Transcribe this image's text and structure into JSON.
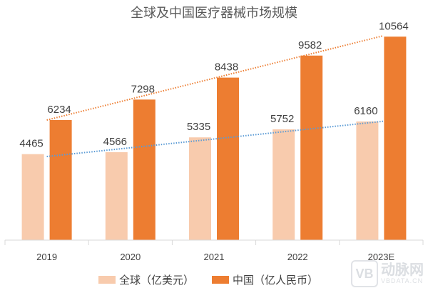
{
  "chart_data": {
    "type": "bar",
    "title": "全球及中国医疗器械市场规模",
    "categories": [
      "2019",
      "2020",
      "2021",
      "2022",
      "2023E"
    ],
    "series": [
      {
        "name": "全球（亿美元）",
        "values": [
          4465,
          4566,
          5335,
          5752,
          6160
        ],
        "color": "#F8CBAD",
        "trendline_color": "#5B9BD5"
      },
      {
        "name": "中国（亿人民币）",
        "values": [
          6234,
          7298,
          8438,
          9582,
          10564
        ],
        "color": "#ED7D31",
        "trendline_color": "#ED7D31"
      }
    ],
    "trendlines": "linear, dotted",
    "ylim": [
      0,
      12500
    ],
    "y_axis_visible": false,
    "grid": false,
    "legend": "bottom",
    "xlabel": "",
    "ylabel": ""
  },
  "watermark": {
    "logo": "VB",
    "name": "动脉网",
    "site": "VBDATA.CN"
  }
}
